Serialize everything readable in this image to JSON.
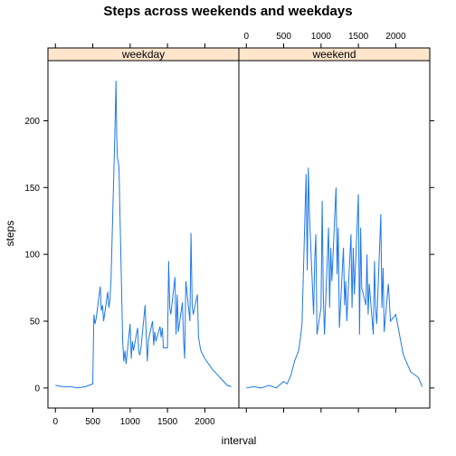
{
  "chart_data": {
    "type": "line",
    "title": "Steps across weekends and weekdays",
    "xlabel": "interval",
    "ylabel": "steps",
    "xlim": [
      -100,
      2455
    ],
    "ylim": [
      -15,
      245
    ],
    "x_ticks": [
      0,
      500,
      1000,
      1500,
      2000
    ],
    "y_ticks": [
      0,
      50,
      100,
      150,
      200
    ],
    "line_color": "#1f78e8",
    "strip_color": "#ffe5cc",
    "panels": [
      {
        "name": "weekday",
        "x": [
          0,
          100,
          200,
          300,
          400,
          500,
          515,
          530,
          545,
          600,
          615,
          630,
          645,
          700,
          715,
          730,
          745,
          800,
          810,
          820,
          830,
          840,
          850,
          900,
          915,
          930,
          945,
          1000,
          1015,
          1030,
          1045,
          1100,
          1115,
          1130,
          1145,
          1200,
          1215,
          1230,
          1245,
          1300,
          1315,
          1330,
          1345,
          1400,
          1415,
          1430,
          1445,
          1500,
          1515,
          1530,
          1545,
          1600,
          1615,
          1630,
          1645,
          1700,
          1715,
          1730,
          1745,
          1800,
          1815,
          1830,
          1845,
          1900,
          1915,
          1930,
          1945,
          2000,
          2100,
          2200,
          2300,
          2355
        ],
        "values": [
          2,
          1,
          1,
          0,
          1,
          3,
          55,
          48,
          52,
          76,
          58,
          62,
          50,
          72,
          60,
          66,
          83,
          200,
          230,
          188,
          172,
          170,
          165,
          35,
          20,
          28,
          18,
          48,
          22,
          35,
          28,
          45,
          27,
          25,
          30,
          62,
          40,
          20,
          36,
          50,
          32,
          42,
          35,
          46,
          38,
          45,
          30,
          30,
          95,
          60,
          55,
          83,
          40,
          70,
          42,
          64,
          36,
          22,
          80,
          50,
          116,
          62,
          55,
          70,
          38,
          33,
          28,
          22,
          14,
          8,
          2,
          1
        ]
      },
      {
        "name": "weekend",
        "x": [
          0,
          100,
          200,
          300,
          400,
          500,
          545,
          600,
          645,
          700,
          730,
          745,
          800,
          815,
          830,
          845,
          900,
          915,
          930,
          945,
          1000,
          1015,
          1030,
          1045,
          1100,
          1115,
          1130,
          1145,
          1200,
          1215,
          1230,
          1245,
          1300,
          1315,
          1330,
          1345,
          1400,
          1415,
          1430,
          1445,
          1500,
          1515,
          1530,
          1545,
          1600,
          1615,
          1630,
          1645,
          1700,
          1715,
          1730,
          1745,
          1800,
          1815,
          1830,
          1845,
          1900,
          1930,
          2000,
          2100,
          2200,
          2300,
          2355
        ],
        "values": [
          0,
          1,
          0,
          2,
          0,
          5,
          3,
          10,
          20,
          28,
          40,
          48,
          160,
          88,
          165,
          130,
          55,
          95,
          115,
          40,
          60,
          140,
          70,
          40,
          120,
          60,
          105,
          80,
          150,
          85,
          120,
          45,
          105,
          62,
          80,
          50,
          115,
          60,
          105,
          70,
          145,
          40,
          120,
          75,
          62,
          100,
          55,
          78,
          40,
          95,
          60,
          48,
          130,
          60,
          90,
          42,
          78,
          50,
          55,
          25,
          12,
          8,
          1
        ]
      }
    ]
  }
}
